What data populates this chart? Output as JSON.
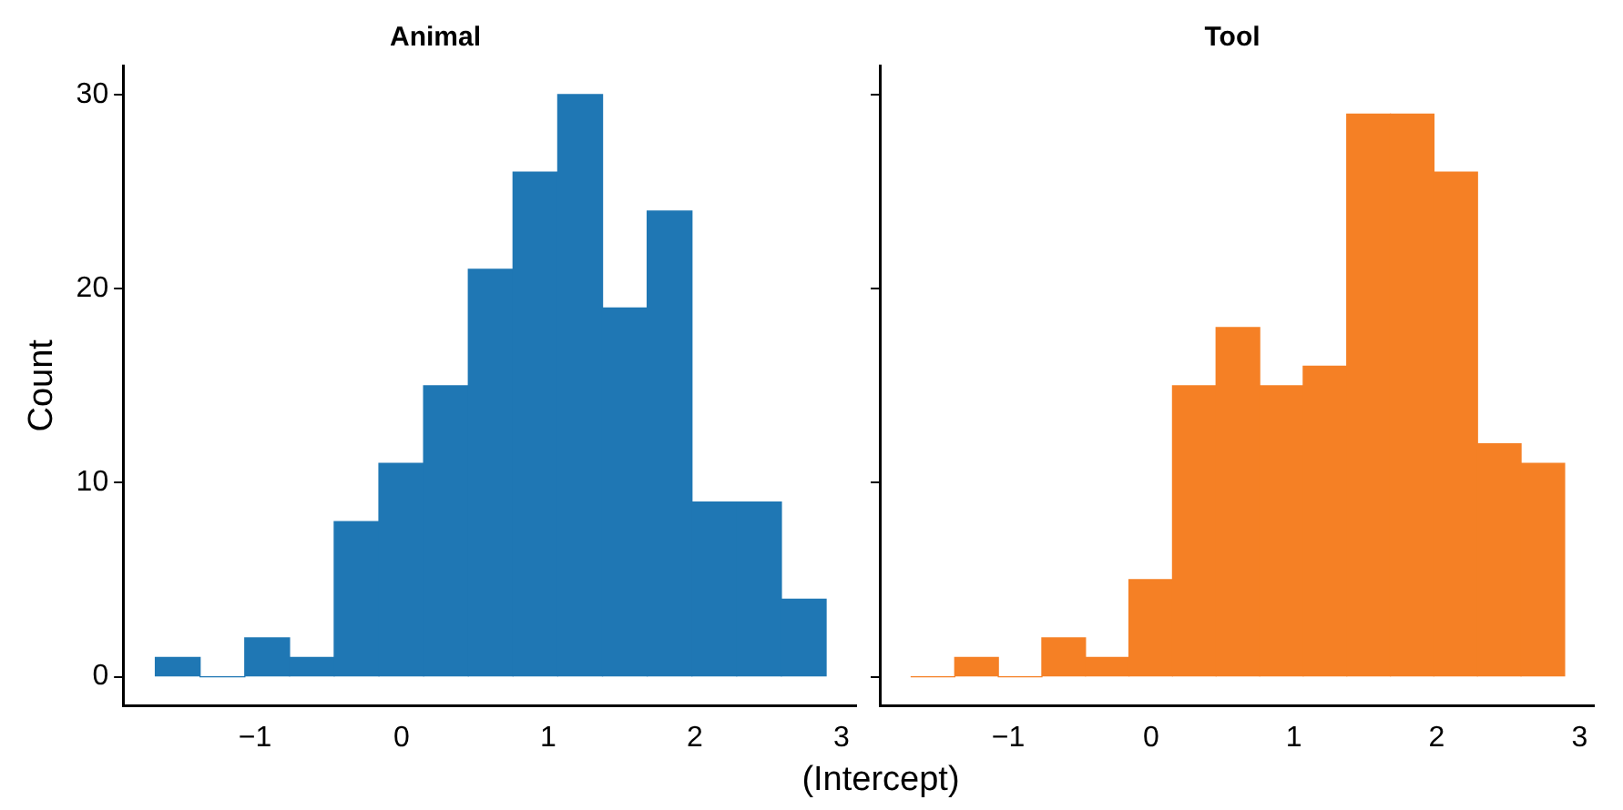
{
  "chart_data": [
    {
      "type": "histogram",
      "title": "Animal",
      "ylabel": "Count",
      "bins": [
        -1.68,
        -1.375,
        -1.07,
        -0.765,
        -0.46,
        -0.155,
        0.15,
        0.455,
        0.76,
        1.065,
        1.37,
        1.675,
        1.98,
        2.285,
        2.59,
        2.895
      ],
      "values": [
        1,
        0,
        2,
        1,
        8,
        11,
        15,
        21,
        26,
        30,
        19,
        24,
        9,
        9,
        4
      ],
      "color": "#1f77b4",
      "xlim": [
        -1.9,
        3.1
      ],
      "xticks": [
        {
          "value": -1,
          "label": "−1"
        },
        0,
        1,
        2,
        3
      ],
      "ylim": [
        -1.5,
        31.5
      ],
      "yticks": [
        0,
        10,
        20,
        30
      ],
      "grid": false,
      "xlabel": "(Intercept)"
    },
    {
      "type": "histogram",
      "title": "Tool",
      "bins": [
        -1.68,
        -1.375,
        -1.07,
        -0.765,
        -0.46,
        -0.155,
        0.15,
        0.455,
        0.76,
        1.065,
        1.37,
        1.675,
        1.98,
        2.285,
        2.59,
        2.895
      ],
      "values": [
        0,
        1,
        0,
        2,
        1,
        5,
        15,
        18,
        15,
        16,
        29,
        29,
        26,
        12,
        11
      ],
      "color": "#f58025",
      "xlim": [
        -1.9,
        3.1
      ],
      "xticks": [
        {
          "value": -1,
          "label": "−1"
        },
        0,
        1,
        2,
        3
      ],
      "ylim": [
        -1.5,
        31.5
      ],
      "yticks": [
        0,
        10,
        20,
        30
      ],
      "grid": false,
      "tick_labels": "x"
    }
  ]
}
